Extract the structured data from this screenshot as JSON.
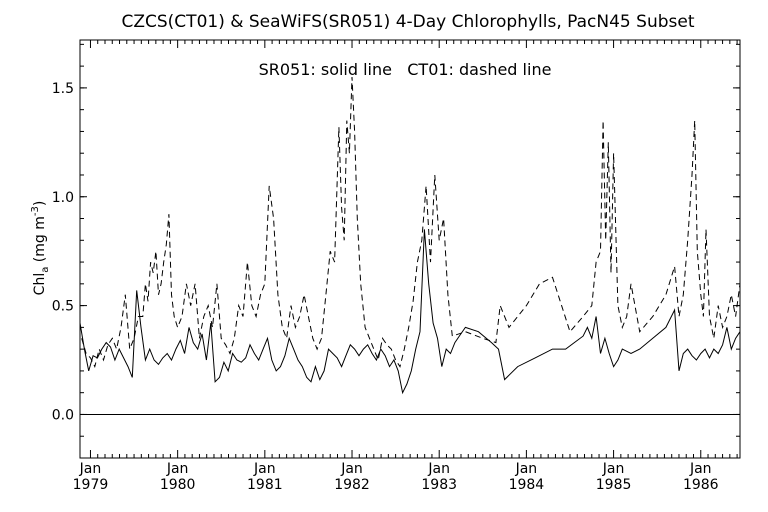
{
  "chart_data": {
    "type": "line",
    "title": "CZCS(CT01) & SeaWiFS(SR051) 4-Day Chlorophylls, PacN45 Subset",
    "annotation": "SR051: solid line   CT01: dashed line",
    "ylabel_main": "Chl",
    "ylabel_sub": "a",
    "ylabel_units_pre": " (mg m",
    "ylabel_units_sup": "-3",
    "ylabel_units_post": ")",
    "ylim": [
      -0.2,
      1.72
    ],
    "xlim": [
      1978.88,
      1986.45
    ],
    "yticks": [
      {
        "value": 0.0,
        "label": "0.0"
      },
      {
        "value": 0.5,
        "label": "0.5"
      },
      {
        "value": 1.0,
        "label": "1.0"
      },
      {
        "value": 1.5,
        "label": "1.5"
      }
    ],
    "xticks": [
      {
        "value": 1979.0,
        "month": "Jan",
        "year": "1979"
      },
      {
        "value": 1980.0,
        "month": "Jan",
        "year": "1980"
      },
      {
        "value": 1981.0,
        "month": "Jan",
        "year": "1981"
      },
      {
        "value": 1982.0,
        "month": "Jan",
        "year": "1982"
      },
      {
        "value": 1983.0,
        "month": "Jan",
        "year": "1983"
      },
      {
        "value": 1984.0,
        "month": "Jan",
        "year": "1984"
      },
      {
        "value": 1985.0,
        "month": "Jan",
        "year": "1985"
      },
      {
        "value": 1986.0,
        "month": "Jan",
        "year": "1986"
      }
    ],
    "zero_line": 0.0,
    "series": [
      {
        "name": "SR051",
        "style": "solid",
        "x": [
          1978.88,
          1978.93,
          1978.98,
          1979.03,
          1979.08,
          1979.13,
          1979.18,
          1979.23,
          1979.28,
          1979.33,
          1979.38,
          1979.43,
          1979.48,
          1979.53,
          1979.58,
          1979.63,
          1979.68,
          1979.73,
          1979.78,
          1979.83,
          1979.88,
          1979.93,
          1979.98,
          1980.03,
          1980.08,
          1980.13,
          1980.18,
          1980.23,
          1980.28,
          1980.33,
          1980.38,
          1980.43,
          1980.48,
          1980.53,
          1980.58,
          1980.63,
          1980.68,
          1980.73,
          1980.78,
          1980.83,
          1980.88,
          1980.93,
          1980.98,
          1981.03,
          1981.08,
          1981.13,
          1981.18,
          1981.23,
          1981.28,
          1981.33,
          1981.38,
          1981.43,
          1981.48,
          1981.53,
          1981.58,
          1981.63,
          1981.68,
          1981.73,
          1981.78,
          1981.83,
          1981.88,
          1981.93,
          1981.98,
          1982.03,
          1982.08,
          1982.13,
          1982.18,
          1982.23,
          1982.28,
          1982.33,
          1982.38,
          1982.43,
          1982.48,
          1982.53,
          1982.58,
          1982.63,
          1982.68,
          1982.73,
          1982.78,
          1982.83,
          1982.88,
          1982.93,
          1982.98,
          1983.03,
          1983.08,
          1983.13,
          1983.18,
          1983.23,
          1983.3,
          1983.45,
          1983.6,
          1983.68,
          1983.75,
          1983.9,
          1984.1,
          1984.3,
          1984.45,
          1984.55,
          1984.65,
          1984.7,
          1984.75,
          1984.8,
          1984.85,
          1984.9,
          1984.95,
          1985.0,
          1985.05,
          1985.1,
          1985.2,
          1985.3,
          1985.45,
          1985.6,
          1985.7,
          1985.75,
          1985.8,
          1985.85,
          1985.9,
          1985.95,
          1986.0,
          1986.05,
          1986.1,
          1986.15,
          1986.2,
          1986.25,
          1986.3,
          1986.35,
          1986.4,
          1986.45
        ],
        "y": [
          0.42,
          0.3,
          0.2,
          0.27,
          0.26,
          0.3,
          0.33,
          0.31,
          0.25,
          0.3,
          0.26,
          0.22,
          0.17,
          0.57,
          0.4,
          0.25,
          0.3,
          0.25,
          0.23,
          0.26,
          0.28,
          0.25,
          0.3,
          0.34,
          0.28,
          0.4,
          0.33,
          0.3,
          0.37,
          0.25,
          0.42,
          0.15,
          0.17,
          0.24,
          0.2,
          0.28,
          0.25,
          0.24,
          0.26,
          0.32,
          0.28,
          0.25,
          0.3,
          0.35,
          0.25,
          0.2,
          0.22,
          0.27,
          0.35,
          0.3,
          0.25,
          0.22,
          0.17,
          0.15,
          0.22,
          0.16,
          0.2,
          0.3,
          0.28,
          0.26,
          0.22,
          0.27,
          0.32,
          0.3,
          0.27,
          0.3,
          0.32,
          0.28,
          0.25,
          0.3,
          0.27,
          0.22,
          0.25,
          0.2,
          0.1,
          0.14,
          0.2,
          0.3,
          0.38,
          0.85,
          0.6,
          0.42,
          0.35,
          0.22,
          0.3,
          0.28,
          0.33,
          0.36,
          0.4,
          0.38,
          0.33,
          0.3,
          0.16,
          0.22,
          0.26,
          0.3,
          0.3,
          0.33,
          0.36,
          0.4,
          0.35,
          0.45,
          0.28,
          0.35,
          0.28,
          0.22,
          0.25,
          0.3,
          0.28,
          0.3,
          0.35,
          0.4,
          0.48,
          0.2,
          0.28,
          0.3,
          0.27,
          0.25,
          0.28,
          0.3,
          0.26,
          0.3,
          0.28,
          0.32,
          0.4,
          0.3,
          0.35,
          0.38
        ]
      },
      {
        "name": "CT01",
        "style": "dashed",
        "x": [
          1978.9,
          1978.95,
          1979.0,
          1979.05,
          1979.1,
          1979.15,
          1979.2,
          1979.25,
          1979.3,
          1979.35,
          1979.4,
          1979.45,
          1979.5,
          1979.55,
          1979.6,
          1979.63,
          1979.66,
          1979.69,
          1979.72,
          1979.75,
          1979.78,
          1979.81,
          1979.84,
          1979.87,
          1979.9,
          1979.93,
          1979.96,
          1980.0,
          1980.05,
          1980.1,
          1980.15,
          1980.2,
          1980.25,
          1980.3,
          1980.35,
          1980.4,
          1980.45,
          1980.5,
          1980.55,
          1980.6,
          1980.65,
          1980.7,
          1980.75,
          1980.8,
          1980.85,
          1980.9,
          1980.95,
          1981.0,
          1981.05,
          1981.1,
          1981.15,
          1981.2,
          1981.25,
          1981.3,
          1981.35,
          1981.4,
          1981.45,
          1981.5,
          1981.55,
          1981.6,
          1981.65,
          1981.7,
          1981.75,
          1981.8,
          1981.85,
          1981.88,
          1981.91,
          1981.94,
          1981.97,
          1982.0,
          1982.03,
          1982.06,
          1982.1,
          1982.15,
          1982.2,
          1982.25,
          1982.3,
          1982.35,
          1982.4,
          1982.45,
          1982.5,
          1982.55,
          1982.6,
          1982.65,
          1982.7,
          1982.75,
          1982.8,
          1982.85,
          1982.9,
          1982.95,
          1983.0,
          1983.05,
          1983.1,
          1983.15,
          1983.3,
          1983.5,
          1983.65,
          1983.7,
          1983.8,
          1984.0,
          1984.15,
          1984.3,
          1984.5,
          1984.65,
          1984.75,
          1984.8,
          1984.85,
          1984.88,
          1984.91,
          1984.94,
          1984.97,
          1985.0,
          1985.05,
          1985.1,
          1985.15,
          1985.2,
          1985.3,
          1985.45,
          1985.6,
          1985.7,
          1985.75,
          1985.8,
          1985.85,
          1985.9,
          1985.93,
          1985.96,
          1986.0,
          1986.03,
          1986.06,
          1986.1,
          1986.15,
          1986.2,
          1986.25,
          1986.3,
          1986.35,
          1986.4,
          1986.45
        ],
        "y": [
          0.35,
          0.28,
          0.26,
          0.22,
          0.3,
          0.25,
          0.32,
          0.35,
          0.3,
          0.4,
          0.55,
          0.3,
          0.35,
          0.45,
          0.45,
          0.6,
          0.52,
          0.7,
          0.65,
          0.75,
          0.55,
          0.6,
          0.7,
          0.78,
          0.92,
          0.55,
          0.45,
          0.4,
          0.45,
          0.6,
          0.5,
          0.6,
          0.35,
          0.45,
          0.5,
          0.4,
          0.6,
          0.35,
          0.32,
          0.28,
          0.35,
          0.5,
          0.45,
          0.7,
          0.5,
          0.45,
          0.55,
          0.6,
          1.05,
          0.9,
          0.55,
          0.4,
          0.35,
          0.5,
          0.4,
          0.45,
          0.55,
          0.45,
          0.35,
          0.3,
          0.35,
          0.55,
          0.75,
          0.7,
          1.32,
          0.95,
          0.8,
          1.35,
          1.2,
          1.55,
          1.3,
          0.9,
          0.6,
          0.4,
          0.35,
          0.3,
          0.25,
          0.35,
          0.32,
          0.3,
          0.25,
          0.22,
          0.3,
          0.4,
          0.52,
          0.7,
          0.8,
          1.05,
          0.7,
          1.1,
          0.8,
          0.9,
          0.55,
          0.36,
          0.38,
          0.35,
          0.33,
          0.5,
          0.4,
          0.5,
          0.6,
          0.63,
          0.38,
          0.45,
          0.5,
          0.7,
          0.75,
          1.35,
          0.8,
          1.25,
          0.65,
          1.2,
          0.5,
          0.4,
          0.45,
          0.6,
          0.38,
          0.45,
          0.55,
          0.68,
          0.45,
          0.55,
          0.8,
          1.1,
          1.35,
          0.75,
          0.55,
          0.45,
          0.85,
          0.45,
          0.35,
          0.5,
          0.4,
          0.45,
          0.55,
          0.45,
          0.6
        ]
      }
    ]
  }
}
